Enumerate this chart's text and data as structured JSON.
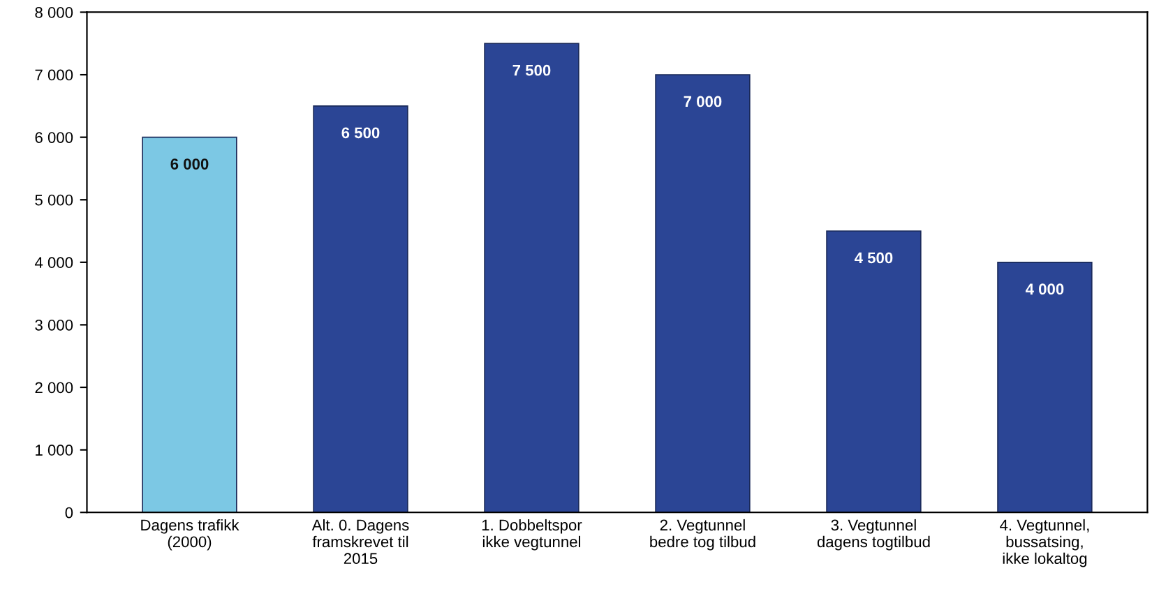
{
  "chart_data": {
    "type": "bar",
    "categories": [
      "Dagens trafikk\n(2000)",
      "Alt. 0. Dagens\nframskrevet til\n2015",
      "1. Dobbeltspor\nikke vegtunnel",
      "2. Vegtunnel\nbedre tog tilbud",
      "3. Vegtunnel\ndagens togtilbud",
      "4. Vegtunnel,\nbussatsing,\nikke lokaltog"
    ],
    "values": [
      6000,
      6500,
      7500,
      7000,
      4500,
      4000
    ],
    "colors": [
      "#7cc8e4",
      "#2b4595",
      "#2b4595",
      "#2b4595",
      "#2b4595",
      "#2b4595"
    ],
    "value_labels": [
      "6 000",
      "6 500",
      "7 500",
      "7 000",
      "4 500",
      "4 000"
    ],
    "ylim": [
      0,
      8000
    ],
    "yticks": [
      0,
      {
        "value": 1000,
        "label": "1 000"
      },
      {
        "value": 2000,
        "label": "2 000"
      },
      {
        "value": 3000,
        "label": "3 000"
      },
      {
        "value": 4000,
        "label": "4 000"
      },
      {
        "value": 5000,
        "label": "5 000"
      },
      {
        "value": 6000,
        "label": "6 000"
      },
      {
        "value": 7000,
        "label": "7 000"
      },
      {
        "value": 8000,
        "label": "8 000"
      }
    ],
    "grid": false,
    "legend": false
  }
}
